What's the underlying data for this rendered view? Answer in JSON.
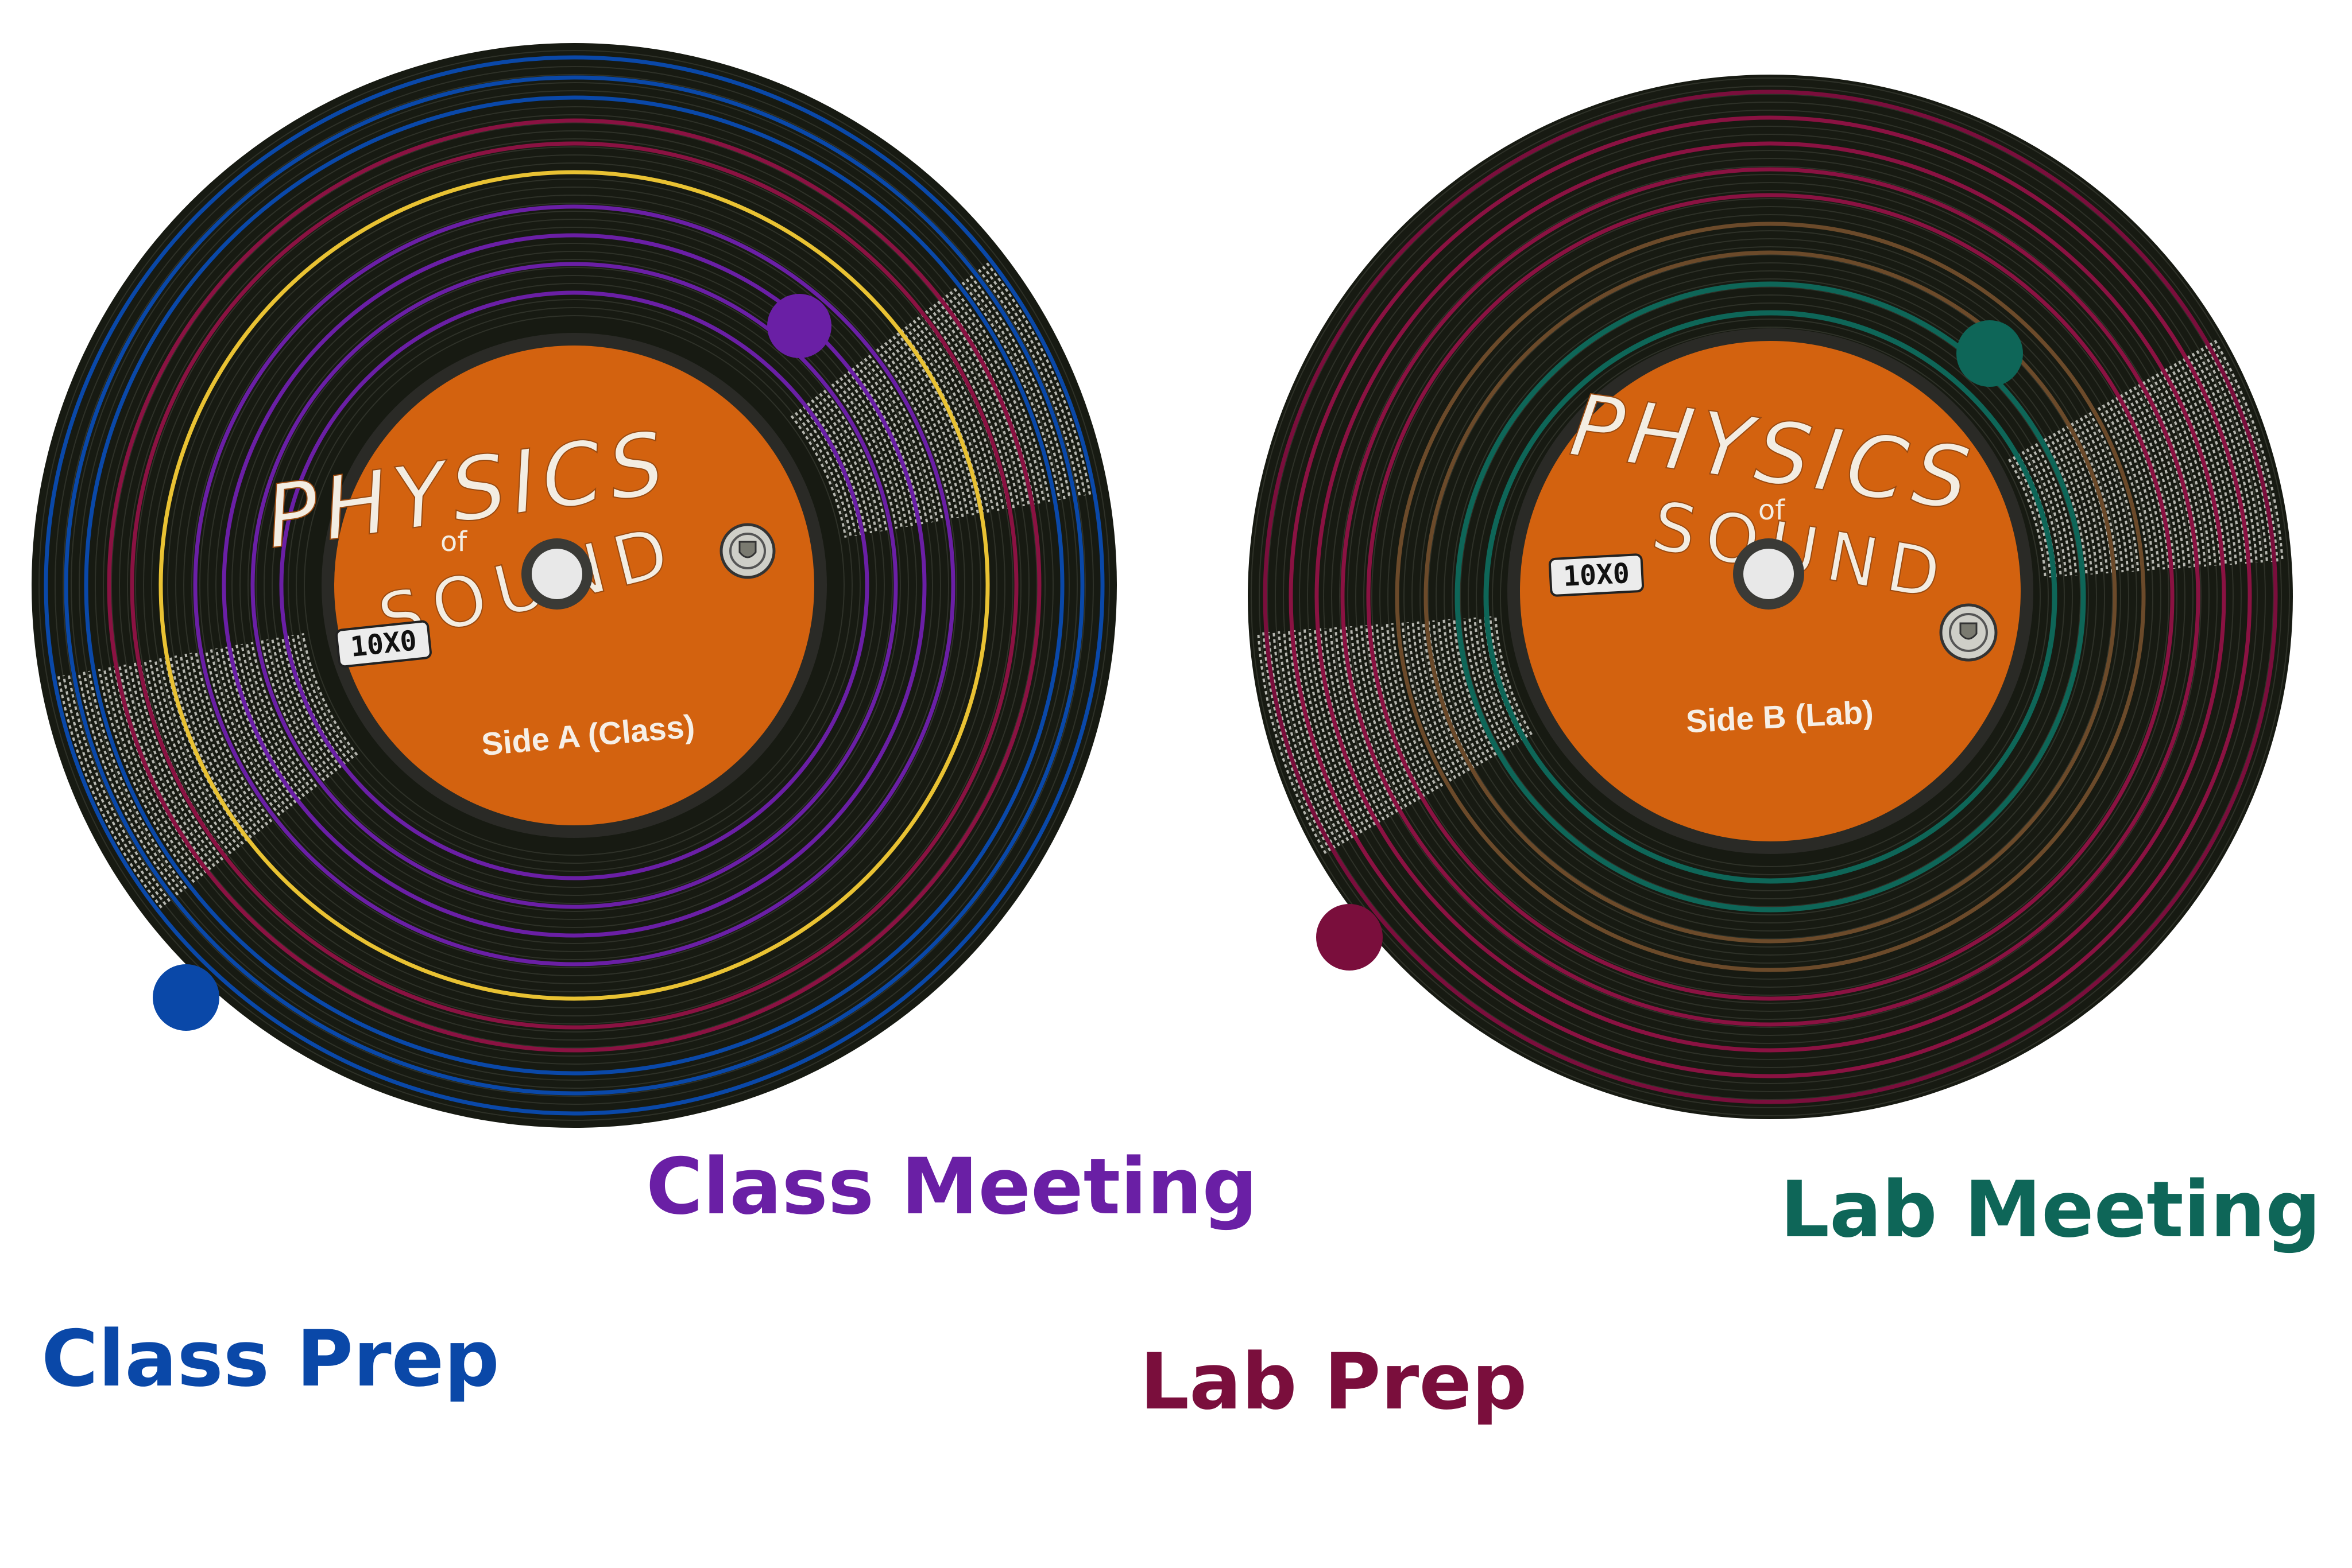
{
  "records": [
    {
      "label_title": "PHYSICS",
      "label_of": "of",
      "label_subtitle": "SOUND",
      "stamp_text": "10X0",
      "side_label": "Side A (Class)"
    },
    {
      "label_title": "PHYSICS",
      "label_of": "of",
      "label_subtitle": "SOUND",
      "stamp_text": "10X0",
      "side_label": "Side B (Lab)"
    }
  ],
  "legend": {
    "class_meeting": "Class Meeting",
    "lab_meeting": "Lab Meeting",
    "class_prep": "Class Prep",
    "lab_prep": "Lab Prep"
  },
  "colors": {
    "vinyl": "#171a12",
    "groove": "#2e3128",
    "label_orange": "#d3620f",
    "label_rim": "#2a2a26",
    "hole": "#e8e8e8",
    "class_prep": "#0a48a8",
    "class_meeting": "#6a1fa5",
    "yellow_track": "#e9c233",
    "maroon_track": "#8a1242",
    "lab_prep": "#7a0e3c",
    "lab_meeting": "#0e6658",
    "brown_track": "#6b4a2a",
    "chalk": "#e9e9e3",
    "caption_class_meeting": "#6a1fa5",
    "caption_lab_meeting": "#0e6658",
    "caption_class_prep": "#0a48a8",
    "caption_lab_prep": "#7a0e3c"
  }
}
